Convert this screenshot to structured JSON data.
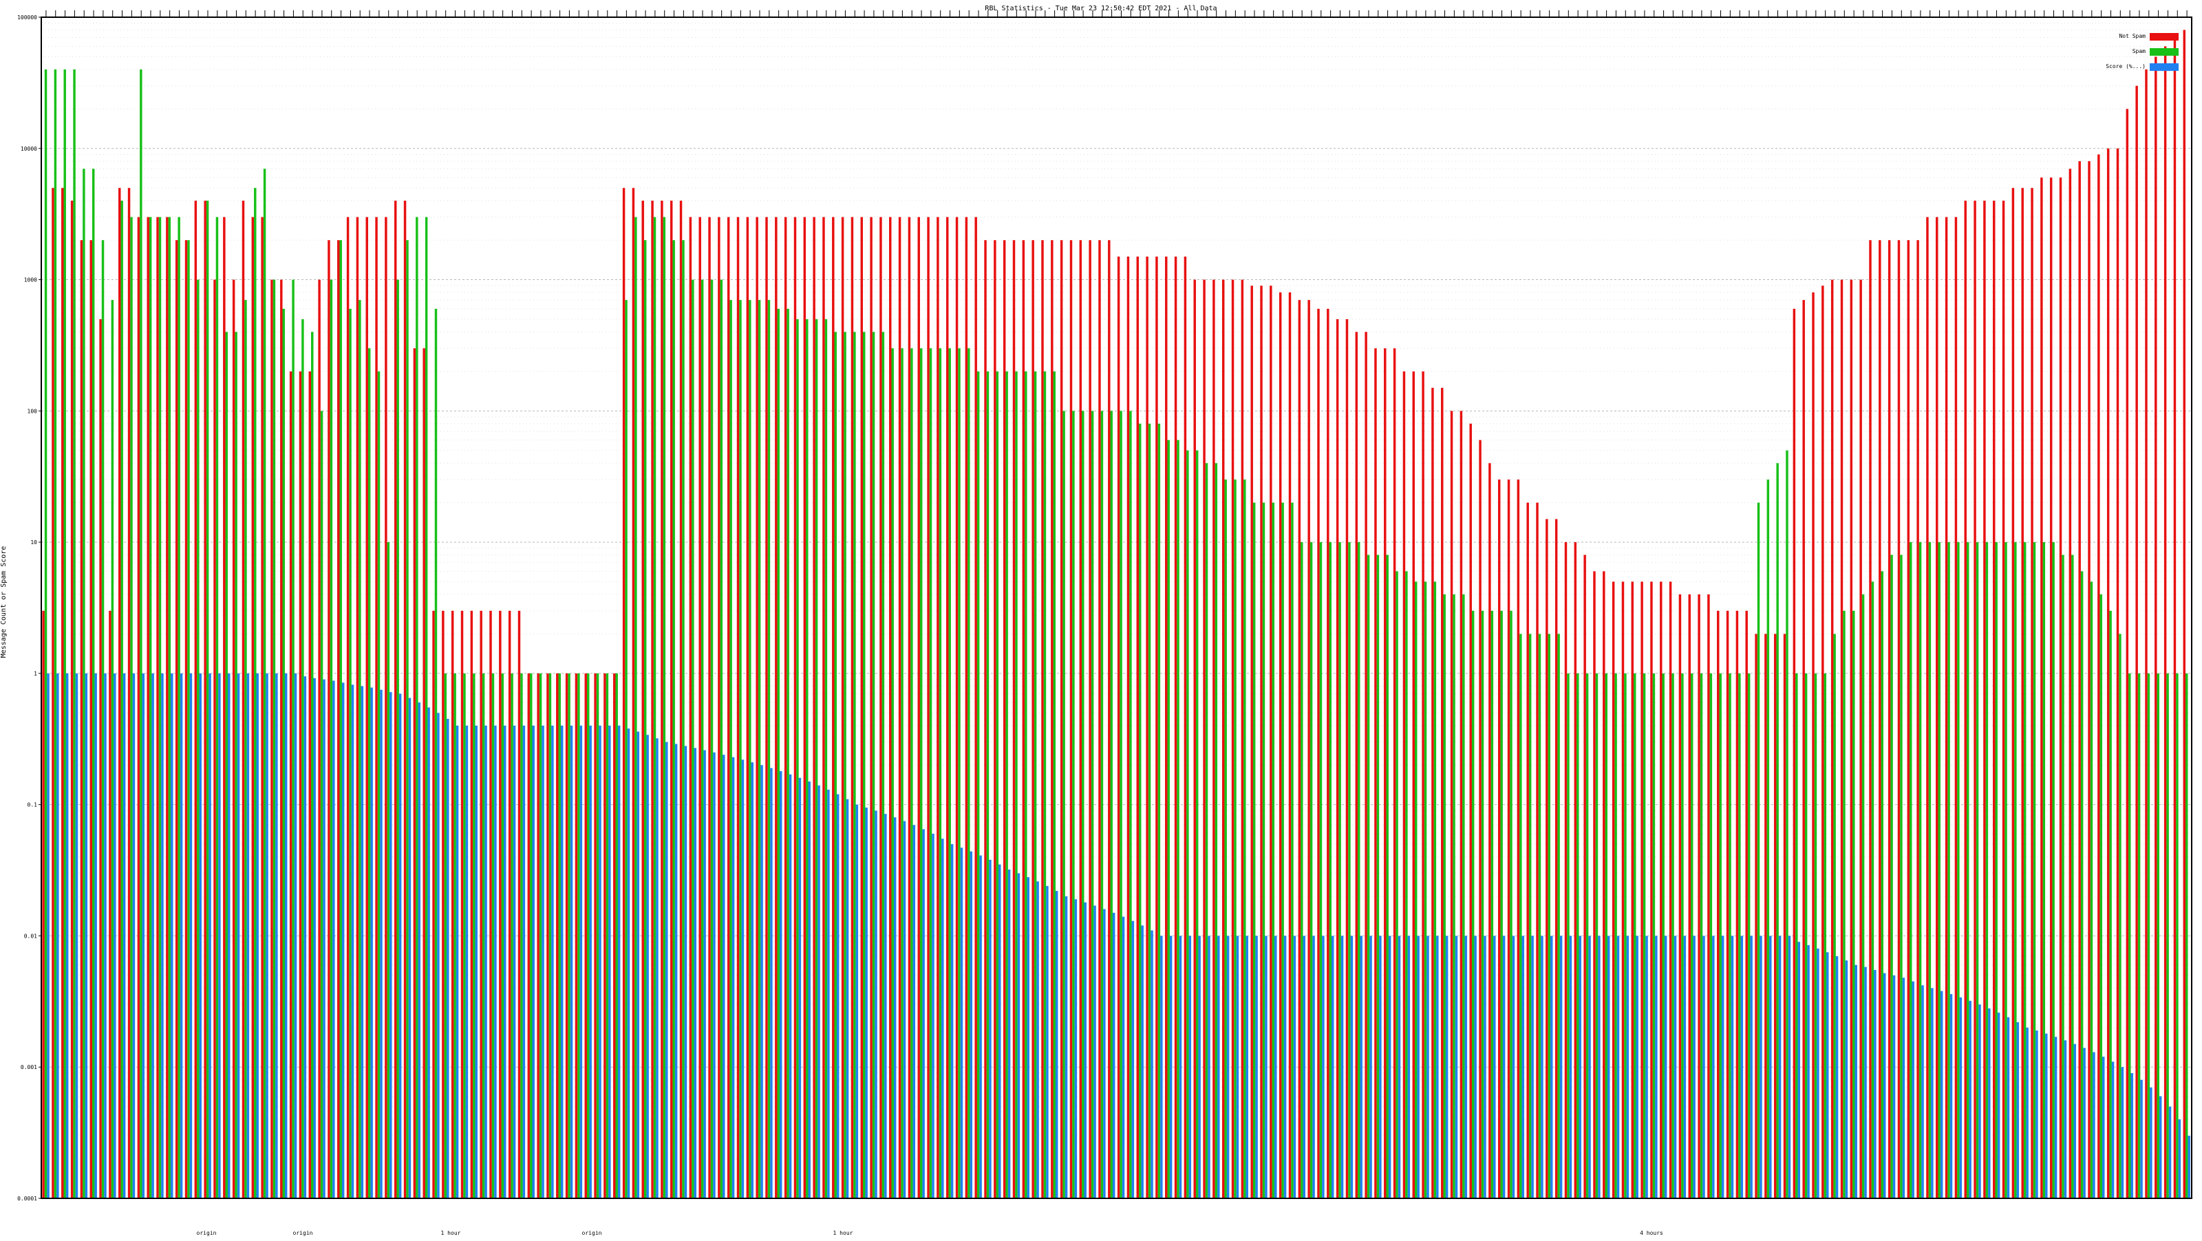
{
  "chart_data": {
    "type": "bar",
    "title": "RBL Statistics - Tue Mar 23 12:50:42 EDT 2021 - All Data",
    "ylabel": "Message Count or Spam Score",
    "xlabel": "",
    "y_scale": "log",
    "ylim": [
      0.0001,
      100000
    ],
    "y_tick_labels": [
      "100000",
      "10000",
      "1000",
      "100",
      "10",
      "1",
      "0.1",
      "0.01",
      "0.001",
      "0.0001"
    ],
    "grid": true,
    "legend_position": "top-right",
    "x_tick_labels_legible": false,
    "visible_x_labels": [
      "origin",
      "origin",
      "origin",
      "1 hour",
      "1 hour",
      "4 hours"
    ],
    "series": [
      {
        "name": "Not Spam",
        "color": "#e81010",
        "values": [
          3,
          5000,
          5000,
          4000,
          2000,
          2000,
          500,
          3,
          5000,
          5000,
          3000,
          3000,
          3000,
          3000,
          2000,
          2000,
          4000,
          4000,
          1000,
          3000,
          1000,
          4000,
          3000,
          3000,
          1000,
          1000,
          200,
          200,
          200,
          1000,
          2000,
          2000,
          3000,
          3000,
          3000,
          3000,
          3000,
          4000,
          4000,
          300,
          300,
          3,
          3,
          3,
          3,
          3,
          3,
          3,
          3,
          3,
          3,
          1,
          1,
          1,
          1,
          1,
          1,
          1,
          1,
          1,
          1,
          5000,
          5000,
          4000,
          4000,
          4000,
          4000,
          4000,
          3000,
          3000,
          3000,
          3000,
          3000,
          3000,
          3000,
          3000,
          3000,
          3000,
          3000,
          3000,
          3000,
          3000,
          3000,
          3000,
          3000,
          3000,
          3000,
          3000,
          3000,
          3000,
          3000,
          3000,
          3000,
          3000,
          3000,
          3000,
          3000,
          3000,
          3000,
          2000,
          2000,
          2000,
          2000,
          2000,
          2000,
          2000,
          2000,
          2000,
          2000,
          2000,
          2000,
          2000,
          2000,
          1500,
          1500,
          1500,
          1500,
          1500,
          1500,
          1500,
          1500,
          1000,
          1000,
          1000,
          1000,
          1000,
          1000,
          900,
          900,
          900,
          800,
          800,
          700,
          700,
          600,
          600,
          500,
          500,
          400,
          400,
          300,
          300,
          300,
          200,
          200,
          200,
          150,
          150,
          100,
          100,
          80,
          60,
          40,
          30,
          30,
          30,
          20,
          20,
          15,
          15,
          10,
          10,
          8,
          6,
          6,
          5,
          5,
          5,
          5,
          5,
          5,
          5,
          4,
          4,
          4,
          4,
          3,
          3,
          3,
          3,
          2,
          2,
          2,
          2,
          600,
          700,
          800,
          900,
          1000,
          1000,
          1000,
          1000,
          2000,
          2000,
          2000,
          2000,
          2000,
          2000,
          3000,
          3000,
          3000,
          3000,
          4000,
          4000,
          4000,
          4000,
          4000,
          5000,
          5000,
          5000,
          6000,
          6000,
          6000,
          7000,
          8000,
          8000,
          9000,
          10000,
          10000,
          20000,
          30000,
          40000,
          50000,
          60000,
          70000,
          80000
        ]
      },
      {
        "name": "Spam",
        "color": "#18c018",
        "values": [
          40000,
          40000,
          40000,
          40000,
          7000,
          7000,
          2000,
          700,
          4000,
          3000,
          40000,
          3000,
          3000,
          3000,
          3000,
          2000,
          1000,
          4000,
          3000,
          400,
          400,
          700,
          5000,
          7000,
          1000,
          600,
          1000,
          500,
          400,
          100,
          1000,
          2000,
          600,
          700,
          300,
          200,
          10,
          1000,
          2000,
          3000,
          3000,
          600,
          1,
          1,
          1,
          1,
          1,
          1,
          1,
          1,
          1,
          1,
          1,
          1,
          1,
          1,
          1,
          1,
          1,
          1,
          1,
          700,
          3000,
          2000,
          3000,
          3000,
          2000,
          2000,
          1000,
          1000,
          1000,
          1000,
          700,
          700,
          700,
          700,
          700,
          600,
          600,
          500,
          500,
          500,
          500,
          400,
          400,
          400,
          400,
          400,
          400,
          300,
          300,
          300,
          300,
          300,
          300,
          300,
          300,
          300,
          200,
          200,
          200,
          200,
          200,
          200,
          200,
          200,
          200,
          100,
          100,
          100,
          100,
          100,
          100,
          100,
          100,
          80,
          80,
          80,
          60,
          60,
          50,
          50,
          40,
          40,
          30,
          30,
          30,
          20,
          20,
          20,
          20,
          20,
          10,
          10,
          10,
          10,
          10,
          10,
          10,
          8,
          8,
          8,
          6,
          6,
          5,
          5,
          5,
          4,
          4,
          4,
          3,
          3,
          3,
          3,
          3,
          2,
          2,
          2,
          2,
          2,
          1,
          1,
          1,
          1,
          1,
          1,
          1,
          1,
          1,
          1,
          1,
          1,
          1,
          1,
          1,
          1,
          1,
          1,
          1,
          1,
          20,
          30,
          40,
          50,
          1,
          1,
          1,
          1,
          2,
          3,
          3,
          4,
          5,
          6,
          8,
          8,
          10,
          10,
          10,
          10,
          10,
          10,
          10,
          10,
          10,
          10,
          10,
          10,
          10,
          10,
          10,
          10,
          8,
          8,
          6,
          5,
          4,
          3,
          2,
          1,
          1,
          1,
          1,
          1,
          1,
          1,
          1,
          1
        ]
      },
      {
        "name": "Score (%...)",
        "color": "#2080f0",
        "values": [
          1,
          1,
          1,
          1,
          1,
          1,
          1,
          1,
          1,
          1,
          1,
          1,
          1,
          1,
          1,
          1,
          1,
          1,
          1,
          1,
          1,
          1,
          1,
          1,
          1,
          1,
          1,
          0.95,
          0.92,
          0.9,
          0.88,
          0.85,
          0.82,
          0.8,
          0.78,
          0.75,
          0.72,
          0.7,
          0.65,
          0.6,
          0.55,
          0.5,
          0.45,
          0.4,
          0.4,
          0.4,
          0.4,
          0.4,
          0.4,
          0.4,
          0.4,
          0.4,
          0.4,
          0.4,
          0.4,
          0.4,
          0.4,
          0.4,
          0.4,
          0.4,
          0.4,
          0.38,
          0.36,
          0.34,
          0.32,
          0.3,
          0.29,
          0.28,
          0.27,
          0.26,
          0.25,
          0.24,
          0.23,
          0.22,
          0.21,
          0.2,
          0.19,
          0.18,
          0.17,
          0.16,
          0.15,
          0.14,
          0.13,
          0.12,
          0.11,
          0.1,
          0.095,
          0.09,
          0.085,
          0.08,
          0.075,
          0.07,
          0.065,
          0.06,
          0.055,
          0.05,
          0.047,
          0.044,
          0.041,
          0.038,
          0.035,
          0.032,
          0.03,
          0.028,
          0.026,
          0.024,
          0.022,
          0.02,
          0.019,
          0.018,
          0.017,
          0.016,
          0.015,
          0.014,
          0.013,
          0.012,
          0.011,
          0.01,
          0.01,
          0.01,
          0.01,
          0.01,
          0.01,
          0.01,
          0.01,
          0.01,
          0.01,
          0.01,
          0.01,
          0.01,
          0.01,
          0.01,
          0.01,
          0.01,
          0.01,
          0.01,
          0.01,
          0.01,
          0.01,
          0.01,
          0.01,
          0.01,
          0.01,
          0.01,
          0.01,
          0.01,
          0.01,
          0.01,
          0.01,
          0.01,
          0.01,
          0.01,
          0.01,
          0.01,
          0.01,
          0.01,
          0.01,
          0.01,
          0.01,
          0.01,
          0.01,
          0.01,
          0.01,
          0.01,
          0.01,
          0.01,
          0.01,
          0.01,
          0.01,
          0.01,
          0.01,
          0.01,
          0.01,
          0.01,
          0.01,
          0.01,
          0.01,
          0.01,
          0.01,
          0.01,
          0.01,
          0.01,
          0.01,
          0.01,
          0.009,
          0.0085,
          0.008,
          0.0075,
          0.007,
          0.0065,
          0.006,
          0.0058,
          0.0055,
          0.0052,
          0.005,
          0.0048,
          0.0045,
          0.0042,
          0.004,
          0.0038,
          0.0036,
          0.0034,
          0.0032,
          0.003,
          0.0028,
          0.0026,
          0.0024,
          0.0022,
          0.002,
          0.0019,
          0.0018,
          0.0017,
          0.0016,
          0.0015,
          0.0014,
          0.0013,
          0.0012,
          0.0011,
          0.001,
          0.0009,
          0.0008,
          0.0007,
          0.0006,
          0.0005,
          0.0004,
          0.0003,
          0.0002
        ]
      }
    ]
  }
}
